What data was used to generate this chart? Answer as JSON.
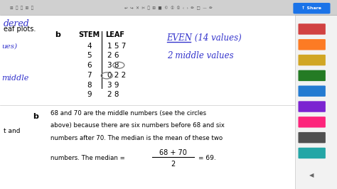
{
  "stem_data": [
    {
      "stem": "4",
      "leaf": "1 5 7"
    },
    {
      "stem": "5",
      "leaf": "2 6"
    },
    {
      "stem": "6",
      "leaf": "3 8"
    },
    {
      "stem": "7",
      "leaf": "0 2 2"
    },
    {
      "stem": "8",
      "leaf": "3 9"
    },
    {
      "stem": "9",
      "leaf": "2 8"
    }
  ],
  "stem_header": "STEM",
  "leaf_header": "LEAF",
  "part_label": "b",
  "left_text1": "dered",
  "left_text2": "eaf plots.",
  "left_text3": "ues)",
  "left_text4": "middle",
  "right_annotation1": "EVEN (14 values)",
  "right_annotation2": "2 middle values",
  "bottom_b": "b",
  "bottom_text1": "68 and 70 are the middle numbers (see the circles",
  "bottom_text2": "above) because there are six numbers before 68 and six",
  "bottom_text3": "numbers after 70. The median is the mean of these two",
  "bottom_text4": "numbers. The median =",
  "fraction_num": "68 + 70",
  "fraction_den": "2",
  "fraction_result": "= 69.",
  "bottom_left": "t and",
  "blue_color": "#3333cc",
  "black_color": "#000000",
  "gray_color": "#888888",
  "right_icon_colors": [
    "#cc2222",
    "#ff6600",
    "#cc9900",
    "#006600",
    "#0066cc",
    "#6600cc",
    "#ff0066",
    "#333333",
    "#009999"
  ]
}
